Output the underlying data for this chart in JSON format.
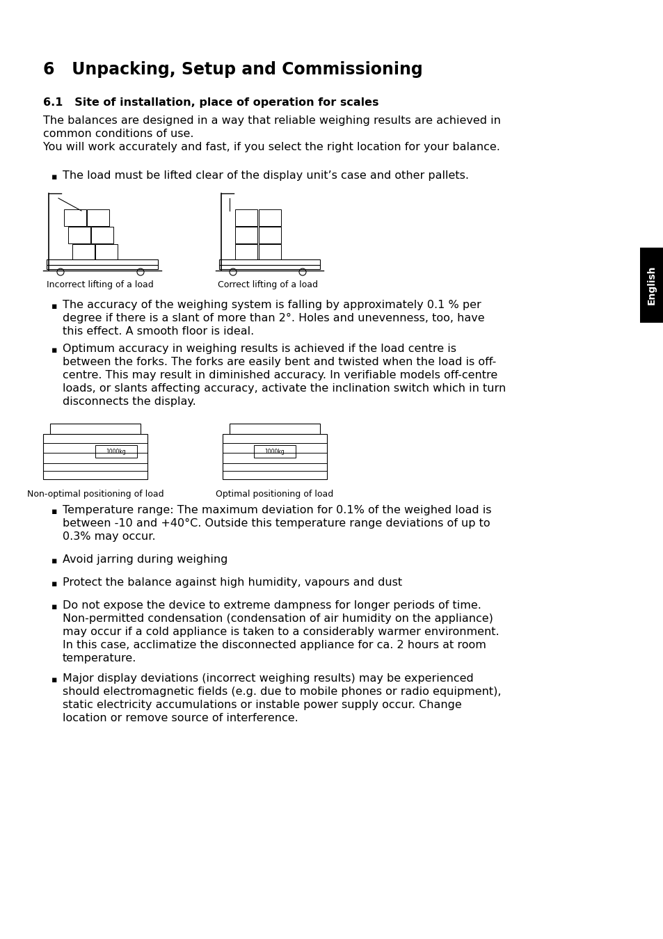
{
  "title": "6   Unpacking, Setup and Commissioning",
  "section_title": "6.1   Site of installation, place of operation for scales",
  "intro_line1": "The balances are designed in a way that reliable weighing results are achieved in",
  "intro_line2": "common conditions of use.",
  "intro_line3": "You will work accurately and fast, if you select the right location for your balance.",
  "bullet1": "The load must be lifted clear of the display unit’s case and other pallets.",
  "img_label1": "Incorrect lifting of a load",
  "img_label2": "Correct lifting of a load",
  "bullet2_lines": [
    "The accuracy of the weighing system is falling by approximately 0.1 % per",
    "degree if there is a slant of more than 2°. Holes and unevenness, too, have",
    "this effect. A smooth floor is ideal."
  ],
  "bullet3_lines": [
    "Optimum accuracy in weighing results is achieved if the load centre is",
    "between the forks. The forks are easily bent and twisted when the load is off-",
    "centre. This may result in diminished accuracy. In verifiable models off-centre",
    "loads, or slants affecting accuracy, activate the inclination switch which in turn",
    "disconnects the display."
  ],
  "img_label3": "Non-optimal positioning of load",
  "img_label4": "Optimal positioning of load",
  "bullet4_lines": [
    "Temperature range: The maximum deviation for 0.1% of the weighed load is",
    "between -10 and +40°C. Outside this temperature range deviations of up to",
    "0.3% may occur."
  ],
  "bullet5": "Avoid jarring during weighing",
  "bullet6": "Protect the balance against high humidity, vapours and dust",
  "bullet7_lines": [
    "Do not expose the device to extreme dampness for longer periods of time.",
    "Non-permitted condensation (condensation of air humidity on the appliance)",
    "may occur if a cold appliance is taken to a considerably warmer environment.",
    "In this case, acclimatize the disconnected appliance for ca. 2 hours at room",
    "temperature."
  ],
  "bullet8_lines": [
    "Major display deviations (incorrect weighing results) may be experienced",
    "should electromagnetic fields (e.g. due to mobile phones or radio equipment),",
    "static electricity accumulations or instable power supply occur. Change",
    "location or remove source of interference."
  ],
  "english_tab_text": "English",
  "bg_color": "#ffffff",
  "text_color": "#000000",
  "tab_color": "#000000"
}
